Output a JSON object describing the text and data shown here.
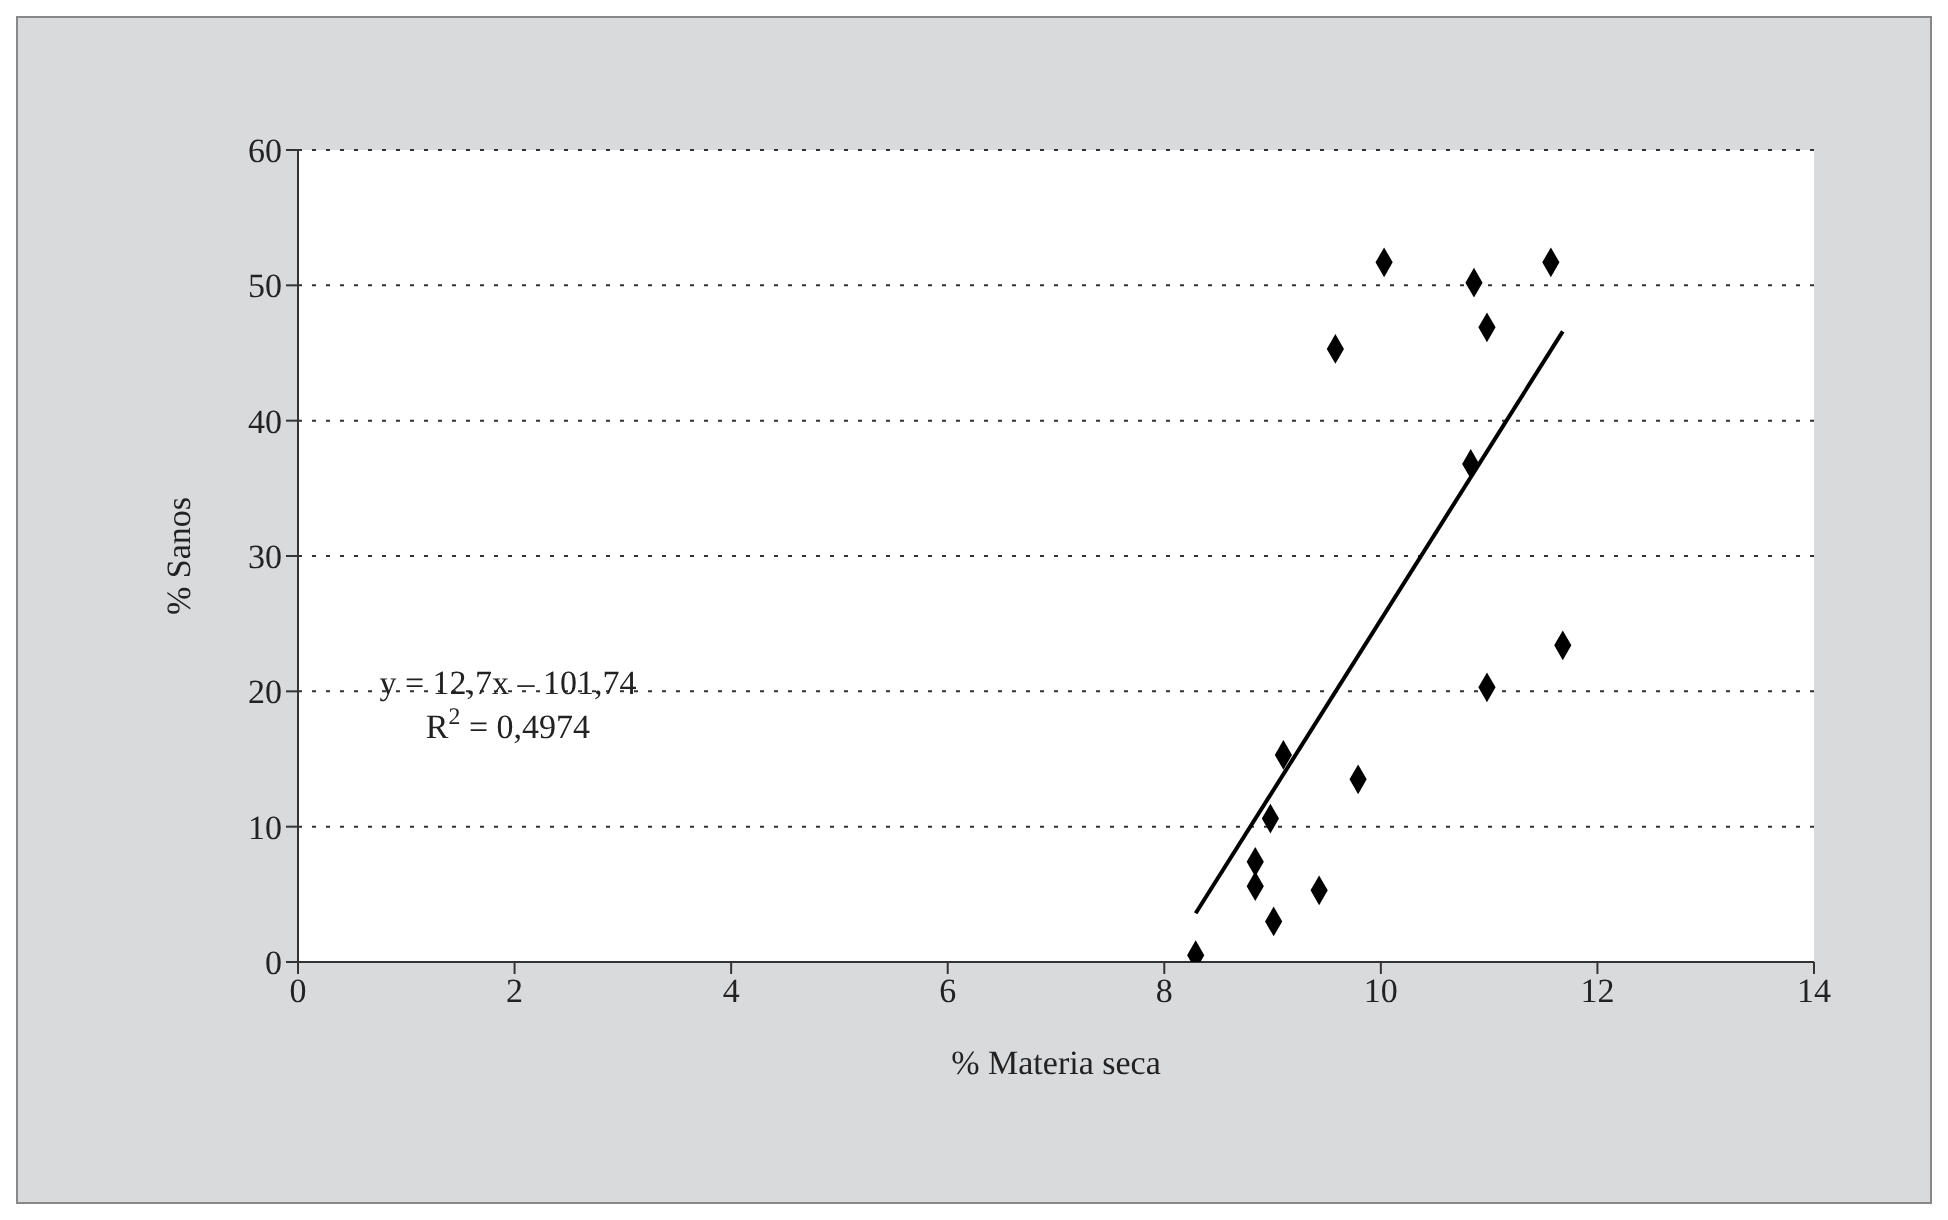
{
  "chart_data": {
    "type": "scatter",
    "xlabel": "% Materia seca",
    "ylabel": "% Sanos",
    "xlim": [
      0,
      14
    ],
    "xticks": [
      0,
      2,
      4,
      6,
      8,
      10,
      12,
      14
    ],
    "ylim": [
      0,
      60
    ],
    "yticks": [
      0,
      10,
      20,
      30,
      40,
      50,
      60
    ],
    "grid": "y",
    "series": [
      {
        "color": "#000000",
        "marker": "diamond",
        "x": [
          8.29,
          9.01,
          8.84,
          9.43,
          8.84,
          8.98,
          9.1,
          9.79,
          10.98,
          11.68,
          10.83,
          9.58,
          10.98,
          10.86,
          10.03,
          11.57
        ],
        "values": [
          0.5,
          3,
          5.6,
          5.3,
          7.4,
          10.6,
          15.3,
          13.5,
          20.3,
          23.4,
          36.8,
          45.3,
          46.9,
          50.2,
          51.7,
          51.7
        ]
      },
      {
        "type": "line",
        "color": "#000000",
        "marker": "none",
        "line_style": "solid",
        "x": [
          8.29,
          11.68
        ],
        "values": [
          3.6,
          46.6
        ]
      }
    ],
    "annotations": [
      "y = 12,7x – 101,74",
      "R$^{2}$ = 0,4974"
    ]
  }
}
